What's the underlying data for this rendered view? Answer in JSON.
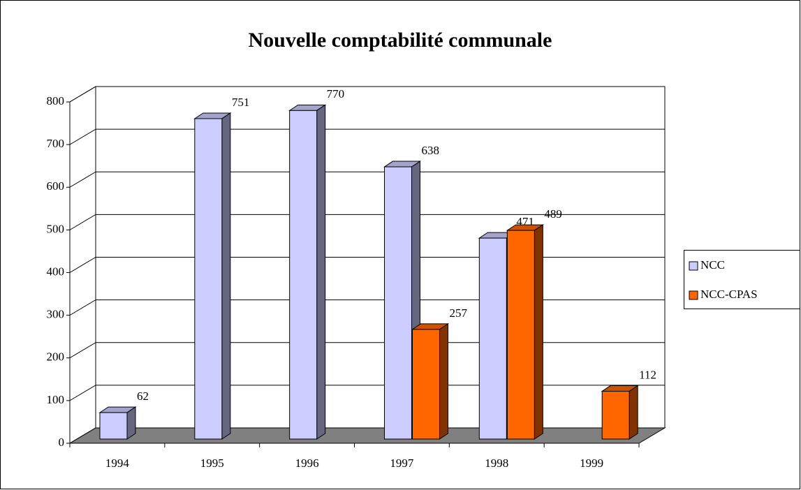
{
  "chart_data": {
    "type": "bar3d",
    "title": "Nouvelle comptabilité communale",
    "categories": [
      "1994",
      "1995",
      "1996",
      "1997",
      "1998",
      "1999"
    ],
    "series": [
      {
        "name": "NCC",
        "color": "#ccccff",
        "values": [
          62,
          751,
          770,
          638,
          471,
          null
        ]
      },
      {
        "name": "NCC-CPAS",
        "color": "#ff6600",
        "values": [
          null,
          null,
          null,
          257,
          489,
          112
        ]
      }
    ],
    "ylim": [
      0,
      800
    ],
    "yticks": [
      0,
      100,
      200,
      300,
      400,
      500,
      600,
      700,
      800
    ],
    "grid": true,
    "legend": "right"
  }
}
